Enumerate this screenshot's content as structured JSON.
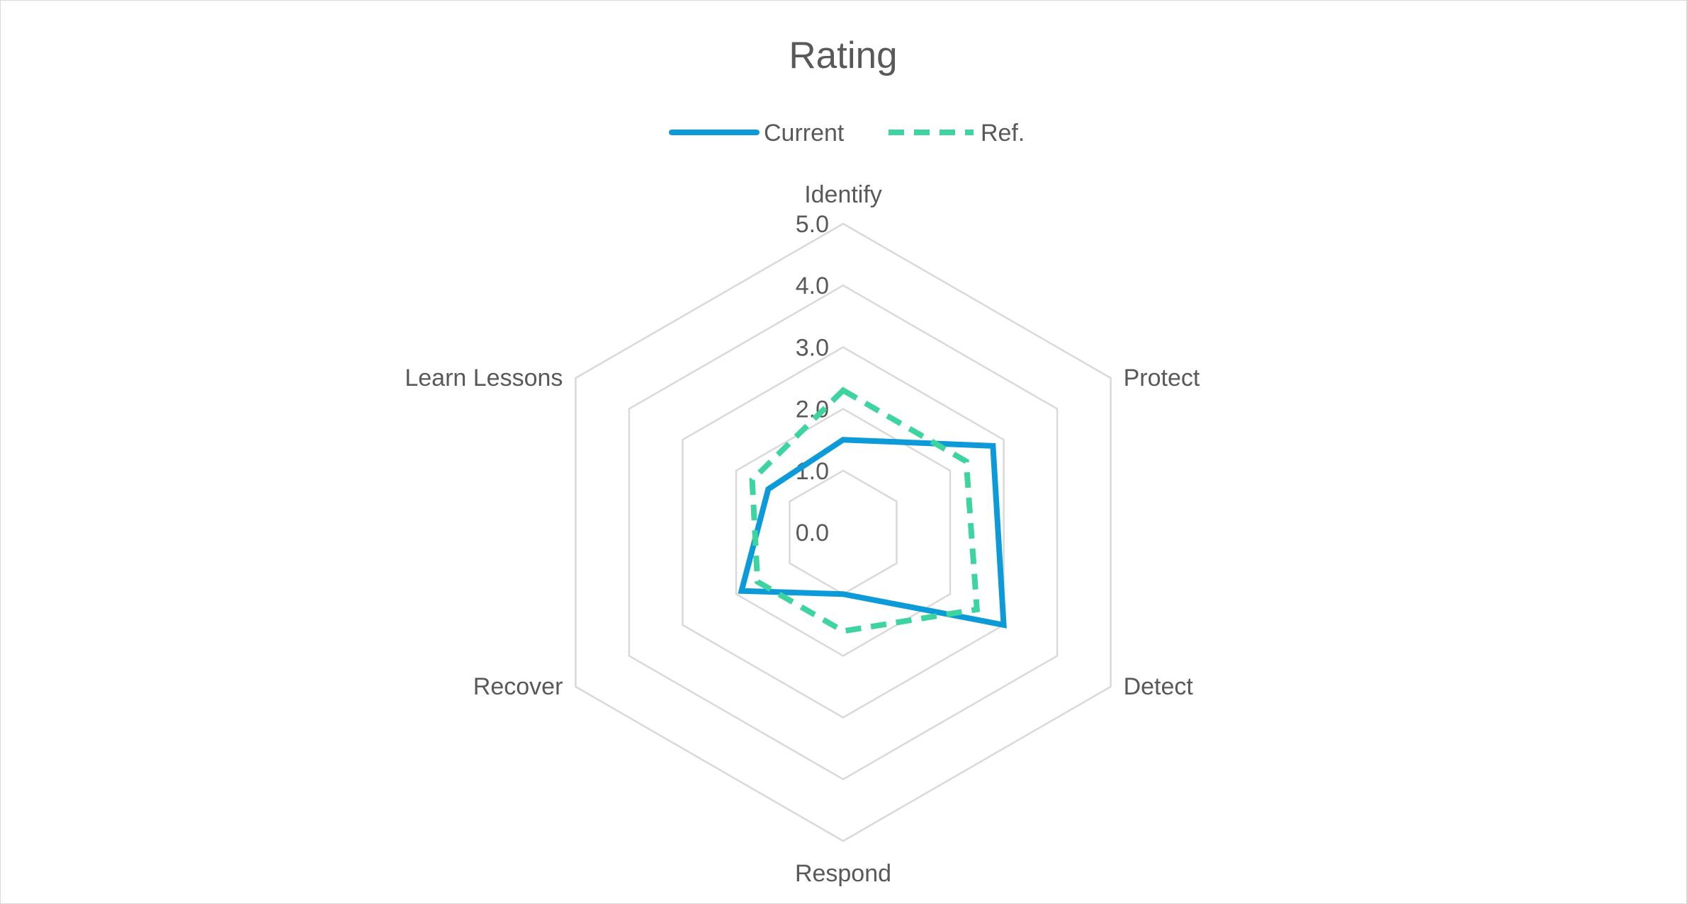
{
  "chart_data": {
    "type": "radar",
    "title": "Rating",
    "categories": [
      "Identify",
      "Protect",
      "Detect",
      "Respond",
      "Recover",
      "Learn Lessons"
    ],
    "series": [
      {
        "name": "Current",
        "values": [
          1.5,
          2.8,
          3.0,
          1.0,
          1.9,
          1.4
        ],
        "color": "#0c9ad9",
        "dash": "solid"
      },
      {
        "name": "Ref.",
        "values": [
          2.3,
          2.3,
          2.5,
          1.6,
          1.6,
          1.7
        ],
        "color": "#3ed4a0",
        "dash": "dashed"
      }
    ],
    "rmin": 0,
    "rmax": 5,
    "ticks": [
      "0.0",
      "1.0",
      "2.0",
      "3.0",
      "4.0",
      "5.0"
    ],
    "legend_position": "top",
    "grid": true
  }
}
